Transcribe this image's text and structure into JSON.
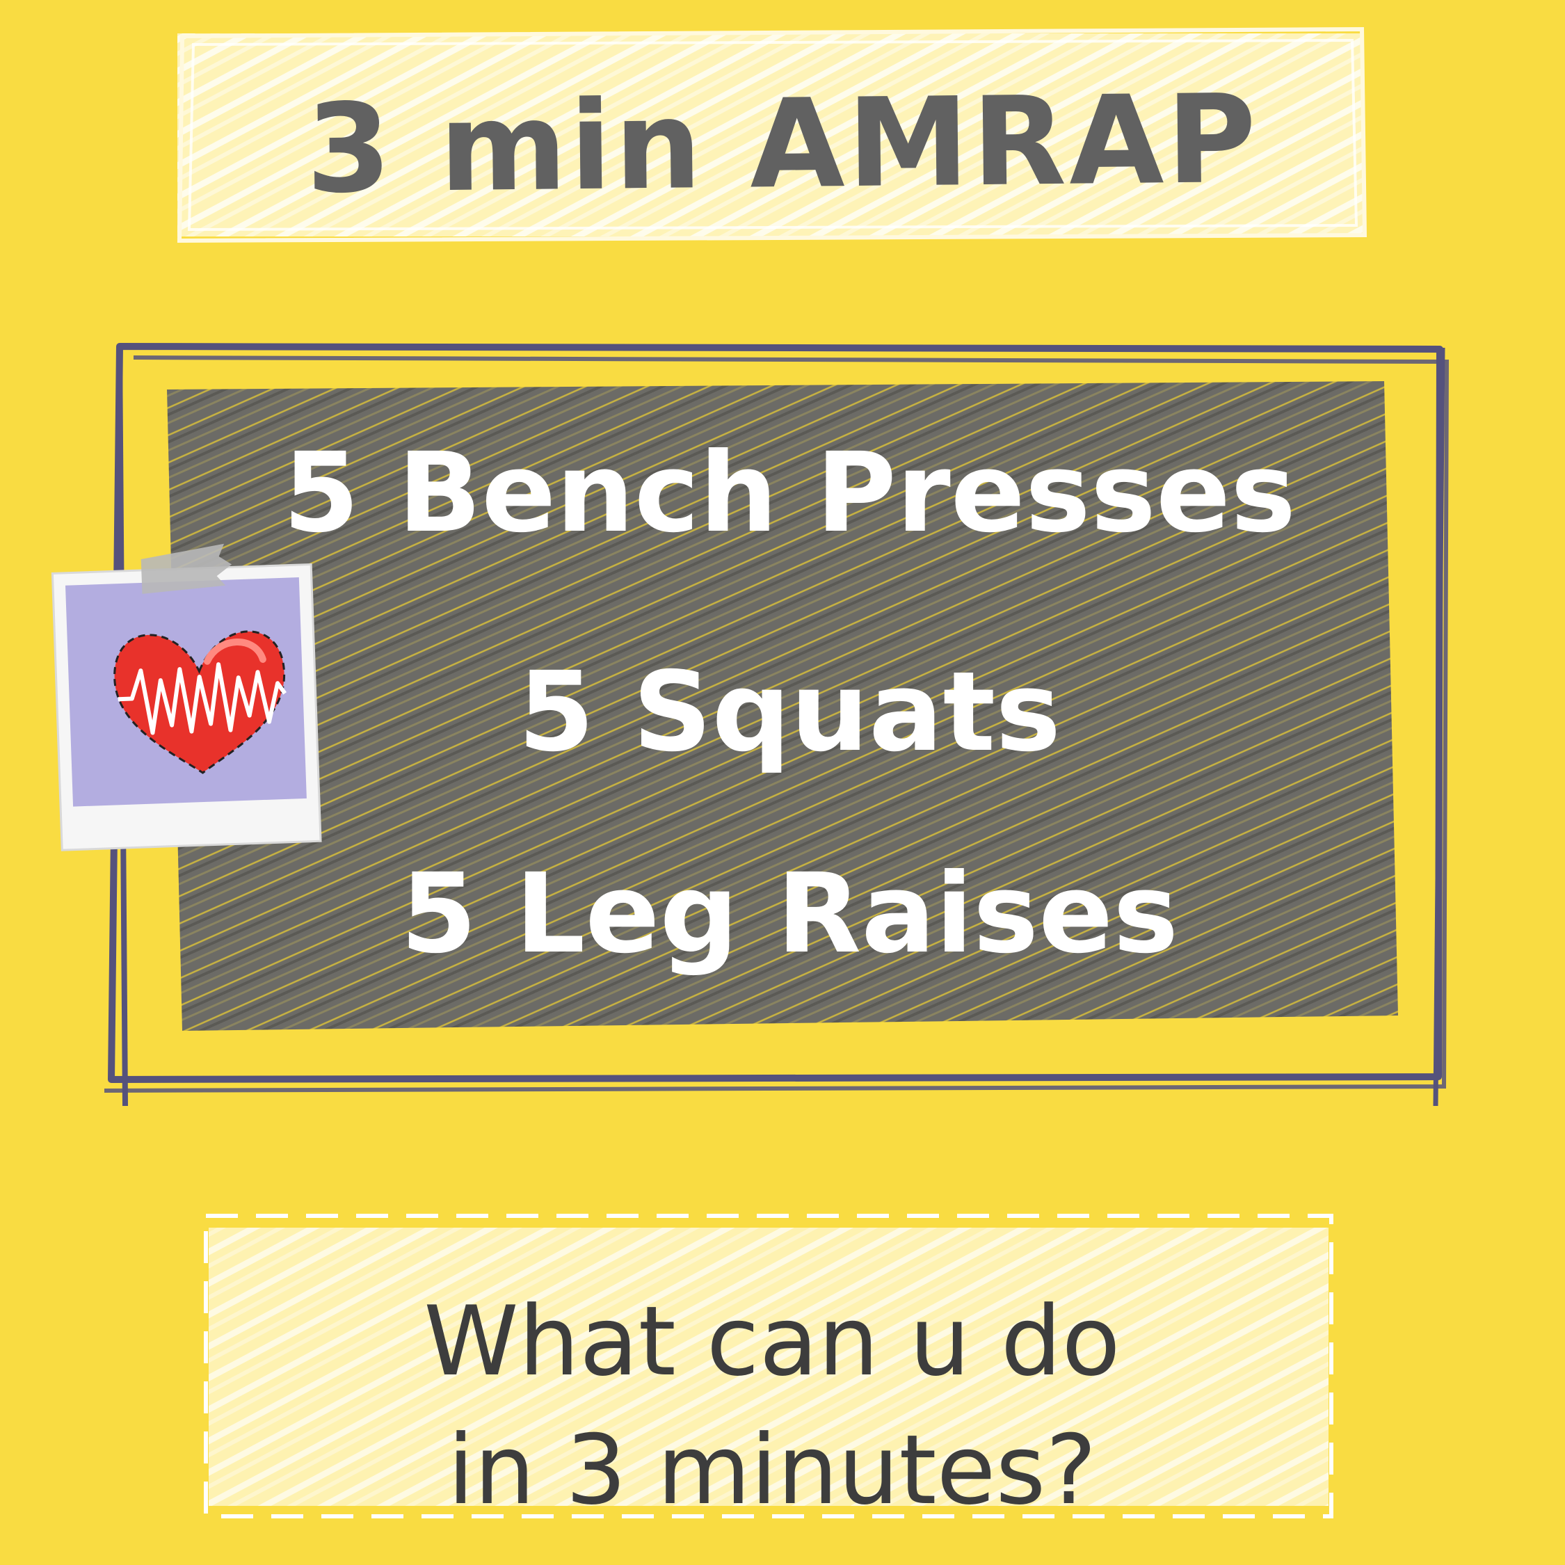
{
  "title": "3 min AMRAP",
  "exercises": [
    "5 Bench Presses",
    "5 Squats",
    "5 Leg Raises"
  ],
  "question": [
    "What can u do",
    "in 3 minutes?"
  ],
  "icons": {
    "photo": "heart-rate-photo-icon"
  },
  "colors": {
    "background": "#f9dc42",
    "board": "#6f6e68",
    "frame": "#55527c",
    "title_text": "#616161",
    "question_text": "#3d3d3d",
    "heart": "#e8322b",
    "photo_bg": "#b3ade0"
  }
}
